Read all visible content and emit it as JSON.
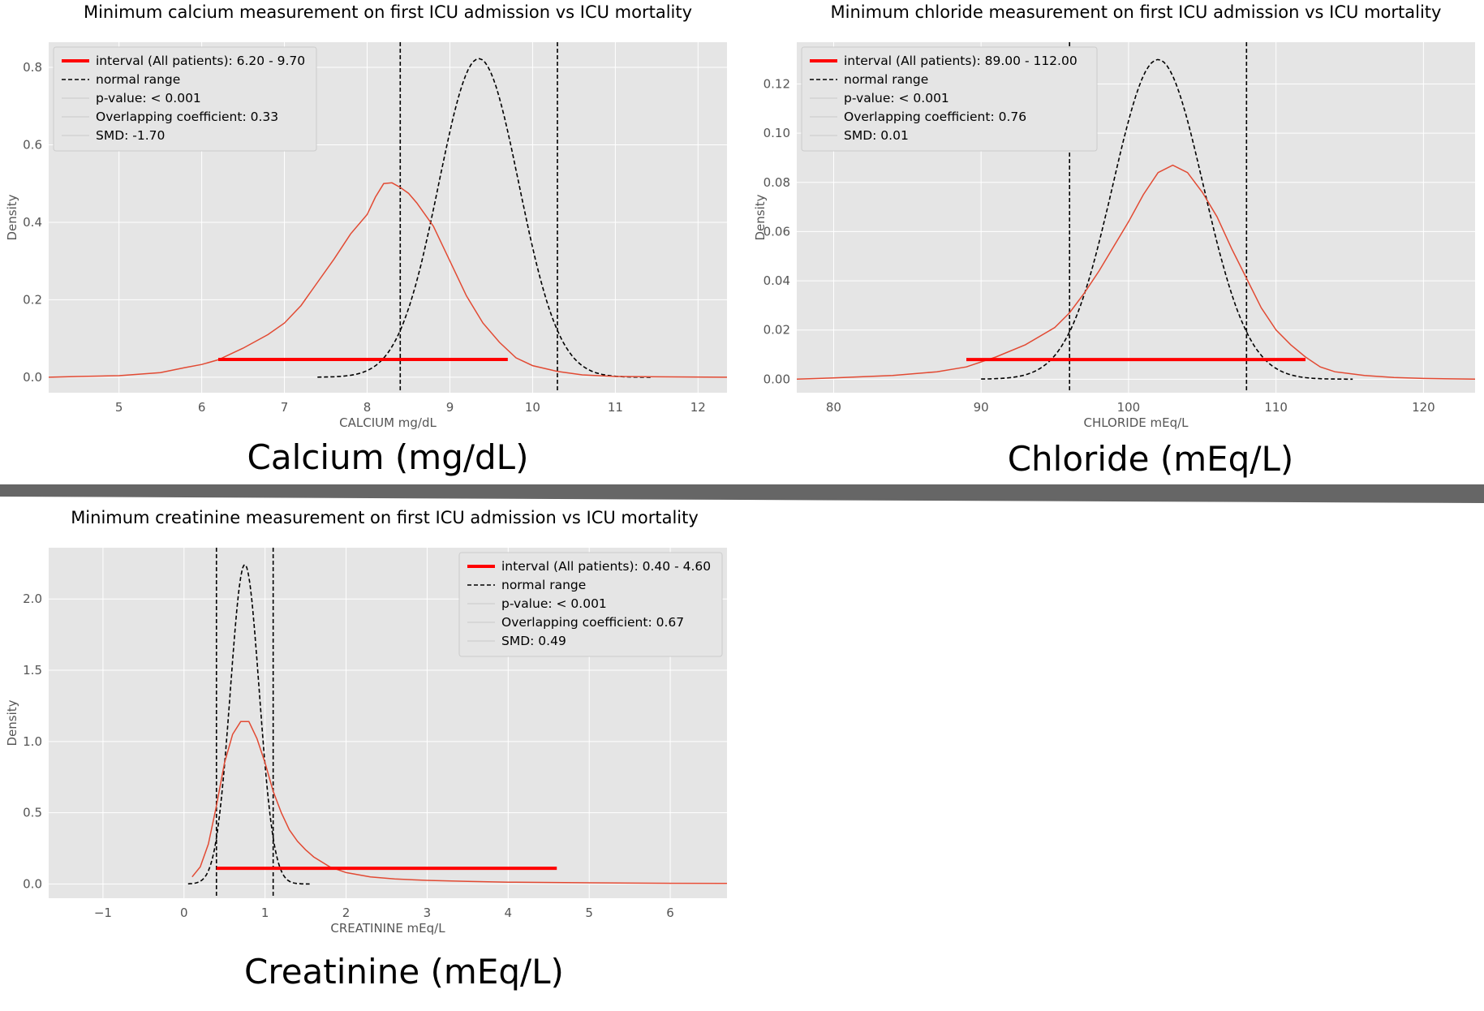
{
  "divider_color": "#666666",
  "colors": {
    "panel_bg": "#e5e5e5",
    "grid": "#ffffff",
    "kde": "#e24a33",
    "interval": "#ff0000",
    "normal": "#000000",
    "text": "#555555",
    "title": "#000000"
  },
  "chart_data": [
    {
      "type": "line",
      "title": "Minimum calcium measurement on first ICU admission vs ICU mortality",
      "caption": "Calcium (mg/dL)",
      "xlabel": "CALCIUM mg/dL",
      "ylabel": "Density",
      "xlim": [
        4.15,
        12.35
      ],
      "ylim": [
        -0.04,
        0.865
      ],
      "xticks": [
        5,
        6,
        7,
        8,
        9,
        10,
        11,
        12
      ],
      "xtick_labels": [
        "5",
        "6",
        "7",
        "8",
        "9",
        "10",
        "11",
        "12"
      ],
      "yticks": [
        0.0,
        0.2,
        0.4,
        0.6,
        0.8
      ],
      "ytick_labels": [
        "0.0",
        "0.2",
        "0.4",
        "0.6",
        "0.8"
      ],
      "grid": true,
      "legend_position": "top-left",
      "legend": [
        {
          "kind": "interval",
          "label": "interval (All patients): 6.20 - 9.70"
        },
        {
          "kind": "dashed",
          "label": "normal range"
        },
        {
          "kind": "faint",
          "label": "p-value: < 0.001"
        },
        {
          "kind": "faint",
          "label": "Overlapping coefficient: 0.33"
        },
        {
          "kind": "faint",
          "label": "SMD: -1.70"
        }
      ],
      "kde": {
        "x": [
          4.15,
          4.5,
          5.0,
          5.5,
          5.8,
          6.0,
          6.2,
          6.5,
          6.8,
          7.0,
          7.2,
          7.4,
          7.6,
          7.8,
          8.0,
          8.1,
          8.2,
          8.3,
          8.4,
          8.5,
          8.6,
          8.8,
          9.0,
          9.2,
          9.4,
          9.6,
          9.8,
          10.0,
          10.3,
          10.6,
          11.0,
          11.5,
          12.35
        ],
        "y": [
          0.0,
          0.002,
          0.004,
          0.012,
          0.025,
          0.033,
          0.045,
          0.075,
          0.11,
          0.14,
          0.185,
          0.245,
          0.305,
          0.37,
          0.42,
          0.465,
          0.5,
          0.502,
          0.49,
          0.475,
          0.45,
          0.39,
          0.3,
          0.21,
          0.14,
          0.09,
          0.05,
          0.03,
          0.015,
          0.006,
          0.002,
          0.001,
          0.0
        ]
      },
      "normal_curve": {
        "mean": 9.35,
        "sd": 0.485,
        "xmin": 7.4,
        "xmax": 11.45
      },
      "normal_range": [
        8.4,
        10.3
      ],
      "interval": {
        "low": 6.2,
        "high": 9.7,
        "y": 0.046
      }
    },
    {
      "type": "line",
      "title": "Minimum chloride measurement on first ICU admission vs ICU mortality",
      "caption": "Chloride (mEq/L)",
      "xlabel": "CHLORIDE mEq/L",
      "ylabel": "Density",
      "xlim": [
        77.5,
        123.5
      ],
      "ylim": [
        -0.0055,
        0.137
      ],
      "xticks": [
        80,
        90,
        100,
        110,
        120
      ],
      "xtick_labels": [
        "80",
        "90",
        "100",
        "110",
        "120"
      ],
      "yticks": [
        0.0,
        0.02,
        0.04,
        0.06,
        0.08,
        0.1,
        0.12
      ],
      "ytick_labels": [
        "0.00",
        "0.02",
        "0.04",
        "0.06",
        "0.08",
        "0.10",
        "0.12"
      ],
      "grid": true,
      "legend_position": "top-left",
      "legend": [
        {
          "kind": "interval",
          "label": "interval (All patients): 89.00 - 112.00"
        },
        {
          "kind": "dashed",
          "label": "normal range"
        },
        {
          "kind": "faint",
          "label": "p-value: < 0.001"
        },
        {
          "kind": "faint",
          "label": "Overlapping coefficient: 0.76"
        },
        {
          "kind": "faint",
          "label": "SMD: 0.01"
        }
      ],
      "kde": {
        "x": [
          77.5,
          80,
          84,
          87,
          89,
          91,
          93,
          95,
          96,
          97,
          98,
          99,
          100,
          101,
          102,
          103,
          104,
          105,
          106,
          107,
          108,
          109,
          110,
          111,
          112,
          113,
          114,
          116,
          118,
          120,
          123.5
        ],
        "y": [
          0.0,
          0.0005,
          0.0015,
          0.003,
          0.005,
          0.009,
          0.014,
          0.021,
          0.027,
          0.035,
          0.044,
          0.054,
          0.064,
          0.075,
          0.084,
          0.087,
          0.084,
          0.076,
          0.066,
          0.053,
          0.041,
          0.029,
          0.02,
          0.014,
          0.009,
          0.005,
          0.003,
          0.0015,
          0.0007,
          0.0003,
          0.0
        ]
      },
      "normal_curve": {
        "mean": 102.0,
        "sd": 3.07,
        "xmin": 90.0,
        "xmax": 115.2
      },
      "normal_range": [
        96.0,
        108.0
      ],
      "interval": {
        "low": 89.0,
        "high": 112.0,
        "y": 0.008
      }
    },
    {
      "type": "line",
      "title": "Minimum creatinine measurement on first ICU admission vs ICU mortality",
      "caption": "Creatinine (mEq/L)",
      "xlabel": "CREATININE mEq/L",
      "ylabel": "Density",
      "xlim": [
        -1.67,
        6.7
      ],
      "ylim": [
        -0.1,
        2.36
      ],
      "xticks": [
        -1,
        0,
        1,
        2,
        3,
        4,
        5,
        6
      ],
      "xtick_labels": [
        "−1",
        "0",
        "1",
        "2",
        "3",
        "4",
        "5",
        "6"
      ],
      "yticks": [
        0.0,
        0.5,
        1.0,
        1.5,
        2.0
      ],
      "ytick_labels": [
        "0.0",
        "0.5",
        "1.0",
        "1.5",
        "2.0"
      ],
      "grid": true,
      "legend_position": "top-right",
      "legend": [
        {
          "kind": "interval",
          "label": "interval (All patients): 0.40 - 4.60"
        },
        {
          "kind": "dashed",
          "label": "normal range"
        },
        {
          "kind": "faint",
          "label": "p-value: < 0.001"
        },
        {
          "kind": "faint",
          "label": "Overlapping coefficient: 0.67"
        },
        {
          "kind": "faint",
          "label": "SMD: 0.49"
        }
      ],
      "kde": {
        "x": [
          0.1,
          0.2,
          0.3,
          0.4,
          0.5,
          0.6,
          0.7,
          0.8,
          0.9,
          1.0,
          1.1,
          1.2,
          1.3,
          1.4,
          1.5,
          1.6,
          1.8,
          2.0,
          2.3,
          2.6,
          3.0,
          3.5,
          4.0,
          5.0,
          6.0,
          6.7
        ],
        "y": [
          0.05,
          0.12,
          0.28,
          0.55,
          0.85,
          1.05,
          1.14,
          1.14,
          1.02,
          0.85,
          0.65,
          0.5,
          0.38,
          0.3,
          0.24,
          0.19,
          0.12,
          0.08,
          0.05,
          0.035,
          0.025,
          0.018,
          0.013,
          0.008,
          0.005,
          0.004
        ]
      },
      "normal_curve": {
        "mean": 0.75,
        "sd": 0.178,
        "xmin": 0.05,
        "xmax": 1.55
      },
      "normal_range": [
        0.4,
        1.1
      ],
      "interval": {
        "low": 0.4,
        "high": 4.6,
        "y": 0.11
      }
    }
  ]
}
